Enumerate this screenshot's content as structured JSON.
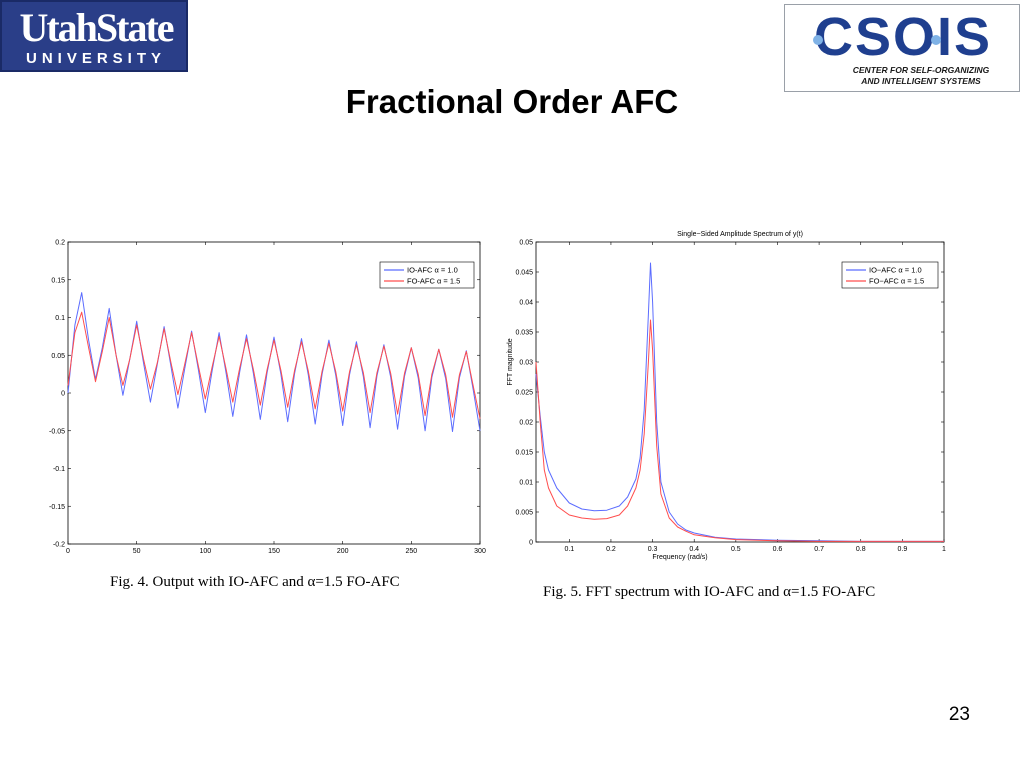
{
  "logos": {
    "usu_line1": "UtahState",
    "usu_line2": "UNIVERSITY",
    "csois_word": "CSOIS",
    "csois_sub1": "CENTER FOR SELF-ORGANIZING",
    "csois_sub2": "AND INTELLIGENT SYSTEMS"
  },
  "slide": {
    "title": "Fractional Order AFC",
    "page_number": "23"
  },
  "colors": {
    "io_afc": "#5b6cff",
    "fo_afc": "#ff4d4d",
    "usu_blue": "#2a3e88",
    "csois_blue": "#1f3f8f"
  },
  "chart_data": [
    {
      "type": "line",
      "title": "",
      "xlabel": "",
      "ylabel": "",
      "xlim": [
        0,
        300
      ],
      "ylim": [
        -0.2,
        0.2
      ],
      "x_ticks": [
        0,
        50,
        100,
        150,
        200,
        250,
        300
      ],
      "x_tick_labels": [
        "0",
        "50",
        "100",
        "150",
        "200",
        "250",
        "300"
      ],
      "y_ticks": [
        0.2,
        0.15,
        0.1,
        0.05,
        0,
        -0.05,
        -0.1,
        -0.15,
        -0.2
      ],
      "y_tick_labels": [
        "0.2",
        "0.15",
        "0.1",
        "0.05",
        "0",
        "-0.05",
        "-0.1",
        "-0.15",
        "-0.2"
      ],
      "legend_position": "top-right",
      "legend": [
        "IO-AFC  α = 1.0",
        "FO-AFC α = 1.5"
      ],
      "series": [
        {
          "name": "IO-AFC  α = 1.0",
          "x": [
            0,
            5,
            10,
            15,
            20,
            25,
            30,
            35,
            40,
            45,
            50,
            55,
            60,
            65,
            70,
            75,
            80,
            85,
            90,
            95,
            100,
            105,
            110,
            115,
            120,
            125,
            130,
            135,
            140,
            145,
            150,
            155,
            160,
            165,
            170,
            175,
            180,
            185,
            190,
            195,
            200,
            205,
            210,
            215,
            220,
            225,
            230,
            235,
            240,
            245,
            250,
            255,
            260,
            265,
            270,
            275,
            280,
            285,
            290,
            295,
            300
          ],
          "values": [
            0,
            0.09,
            0.133,
            0.07,
            0.018,
            0.06,
            0.112,
            0.05,
            -0.003,
            0.045,
            0.095,
            0.04,
            -0.012,
            0.038,
            0.088,
            0.035,
            -0.02,
            0.032,
            0.082,
            0.03,
            -0.026,
            0.03,
            0.08,
            0.028,
            -0.031,
            0.028,
            0.077,
            0.026,
            -0.035,
            0.027,
            0.074,
            0.025,
            -0.038,
            0.026,
            0.072,
            0.024,
            -0.041,
            0.025,
            0.07,
            0.023,
            -0.043,
            0.024,
            0.068,
            0.022,
            -0.046,
            0.023,
            0.064,
            0.021,
            -0.048,
            0.022,
            0.06,
            0.02,
            -0.05,
            0.021,
            0.058,
            0.019,
            -0.051,
            0.02,
            0.056,
            0.005,
            -0.05
          ]
        },
        {
          "name": "FO-AFC α = 1.5",
          "x": [
            0,
            5,
            10,
            15,
            20,
            25,
            30,
            35,
            40,
            45,
            50,
            55,
            60,
            65,
            70,
            75,
            80,
            85,
            90,
            95,
            100,
            105,
            110,
            115,
            120,
            125,
            130,
            135,
            140,
            145,
            150,
            155,
            160,
            165,
            170,
            175,
            180,
            185,
            190,
            195,
            200,
            205,
            210,
            215,
            220,
            225,
            230,
            235,
            240,
            245,
            250,
            255,
            260,
            265,
            270,
            275,
            280,
            285,
            290,
            295,
            300
          ],
          "values": [
            0.01,
            0.08,
            0.107,
            0.06,
            0.015,
            0.055,
            0.1,
            0.05,
            0.01,
            0.045,
            0.09,
            0.045,
            0.005,
            0.04,
            0.085,
            0.04,
            -0.002,
            0.038,
            0.08,
            0.035,
            -0.008,
            0.035,
            0.075,
            0.033,
            -0.012,
            0.033,
            0.072,
            0.031,
            -0.016,
            0.031,
            0.07,
            0.03,
            -0.019,
            0.03,
            0.068,
            0.029,
            -0.021,
            0.029,
            0.066,
            0.028,
            -0.024,
            0.028,
            0.064,
            0.027,
            -0.026,
            0.027,
            0.062,
            0.026,
            -0.028,
            0.026,
            0.06,
            0.025,
            -0.03,
            0.025,
            0.058,
            0.024,
            -0.032,
            0.024,
            0.055,
            0.01,
            -0.034
          ]
        }
      ],
      "caption": "Fig. 4.    Output with IO-AFC and α=1.5 FO-AFC"
    },
    {
      "type": "line",
      "title": "Single−Sided Amplitude Spectrum of y(t)",
      "xlabel": "Frequency (rad/s)",
      "ylabel": "FFT magnitude",
      "xlim": [
        0.02,
        1
      ],
      "ylim": [
        0,
        0.05
      ],
      "x_ticks": [
        0.1,
        0.2,
        0.3,
        0.4,
        0.5,
        0.6,
        0.7,
        0.8,
        0.9,
        1
      ],
      "x_tick_labels": [
        "0.1",
        "0.2",
        "0.3",
        "0.4",
        "0.5",
        "0.6",
        "0.7",
        "0.8",
        "0.9",
        "1"
      ],
      "y_ticks": [
        0,
        0.005,
        0.01,
        0.015,
        0.02,
        0.025,
        0.03,
        0.035,
        0.04,
        0.045,
        0.05
      ],
      "y_tick_labels": [
        "0",
        "0.005",
        "0.01",
        "0.015",
        "0.02",
        "0.025",
        "0.03",
        "0.035",
        "0.04",
        "0.045",
        "0.05"
      ],
      "legend_position": "top-right",
      "legend": [
        "IO−AFC  α = 1.0",
        "FO−AFC α = 1.5"
      ],
      "series": [
        {
          "name": "IO−AFC  α = 1.0",
          "x": [
            0.02,
            0.03,
            0.04,
            0.05,
            0.07,
            0.1,
            0.13,
            0.16,
            0.19,
            0.22,
            0.24,
            0.26,
            0.27,
            0.28,
            0.29,
            0.295,
            0.3,
            0.31,
            0.32,
            0.34,
            0.36,
            0.38,
            0.4,
            0.45,
            0.5,
            0.6,
            0.7,
            0.8,
            0.9,
            1
          ],
          "values": [
            0.028,
            0.021,
            0.015,
            0.012,
            0.009,
            0.0065,
            0.0055,
            0.0052,
            0.0053,
            0.006,
            0.0075,
            0.0105,
            0.014,
            0.022,
            0.038,
            0.0465,
            0.04,
            0.02,
            0.01,
            0.005,
            0.003,
            0.002,
            0.0015,
            0.0008,
            0.0005,
            0.0003,
            0.0002,
            0.0001,
            0.0001,
            0.0001
          ]
        },
        {
          "name": "FO−AFC α = 1.5",
          "x": [
            0.02,
            0.03,
            0.04,
            0.05,
            0.07,
            0.1,
            0.13,
            0.16,
            0.19,
            0.22,
            0.24,
            0.26,
            0.27,
            0.28,
            0.29,
            0.295,
            0.3,
            0.31,
            0.32,
            0.34,
            0.36,
            0.38,
            0.4,
            0.45,
            0.5,
            0.6,
            0.7,
            0.8,
            0.9,
            1
          ],
          "values": [
            0.03,
            0.02,
            0.012,
            0.009,
            0.006,
            0.0045,
            0.004,
            0.0038,
            0.0039,
            0.0045,
            0.006,
            0.009,
            0.012,
            0.018,
            0.03,
            0.037,
            0.032,
            0.016,
            0.008,
            0.004,
            0.0025,
            0.0018,
            0.0012,
            0.0007,
            0.0004,
            0.0002,
            0.0001,
            0.0001,
            0.0001,
            0.0001
          ]
        }
      ],
      "caption": "Fig. 5.    FFT spectrum with IO-AFC and α=1.5 FO-AFC"
    }
  ]
}
